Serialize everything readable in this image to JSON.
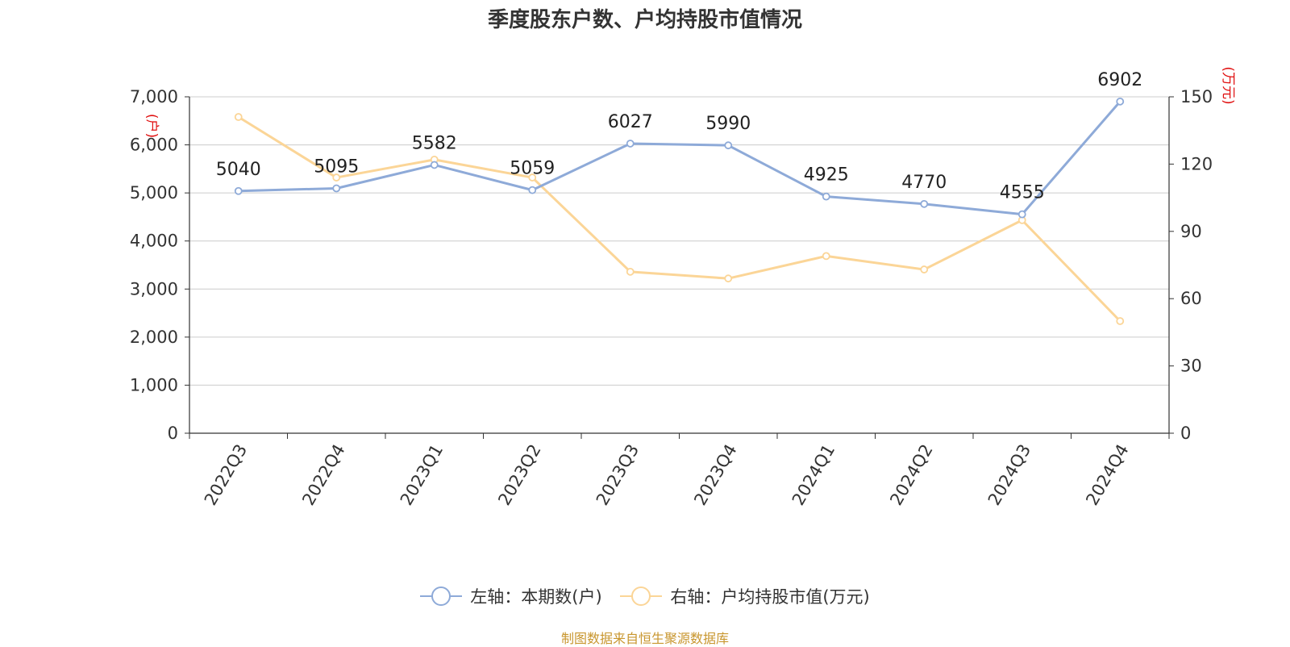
{
  "title": "季度股东户数、户均持股市值情况",
  "source": "制图数据来自恒生聚源数据库",
  "colors": {
    "left_series": "#8eaad8",
    "right_series": "#fbd597",
    "axis_unit": "#e01010"
  },
  "legend": [
    {
      "label": "左轴：本期数(户)"
    },
    {
      "label": "右轴：户均持股市值(万元)"
    }
  ],
  "chart_data": {
    "type": "line",
    "title": "季度股东户数、户均持股市值情况",
    "categories": [
      "2022Q3",
      "2022Q4",
      "2023Q1",
      "2023Q2",
      "2023Q3",
      "2023Q4",
      "2024Q1",
      "2024Q2",
      "2024Q3",
      "2024Q4"
    ],
    "y_left": {
      "unit": "(户)",
      "range": [
        0,
        7000
      ],
      "ticks": [
        "0",
        "1,000",
        "2,000",
        "3,000",
        "4,000",
        "5,000",
        "6,000",
        "7,000"
      ]
    },
    "y_right": {
      "unit": "(万元)",
      "range": [
        0,
        150
      ],
      "ticks": [
        "0",
        "30",
        "60",
        "90",
        "120",
        "150"
      ]
    },
    "grid": true,
    "legend_position": "bottom",
    "series": [
      {
        "name": "左轴：本期数(户)",
        "axis": "left",
        "show_labels": true,
        "values": [
          5040,
          5095,
          5582,
          5059,
          6027,
          5990,
          4925,
          4770,
          4555,
          6902
        ]
      },
      {
        "name": "右轴：户均持股市值(万元)",
        "axis": "right",
        "show_labels": false,
        "values": [
          141,
          114,
          122,
          114,
          72,
          69,
          79,
          73,
          95,
          50
        ]
      }
    ]
  }
}
